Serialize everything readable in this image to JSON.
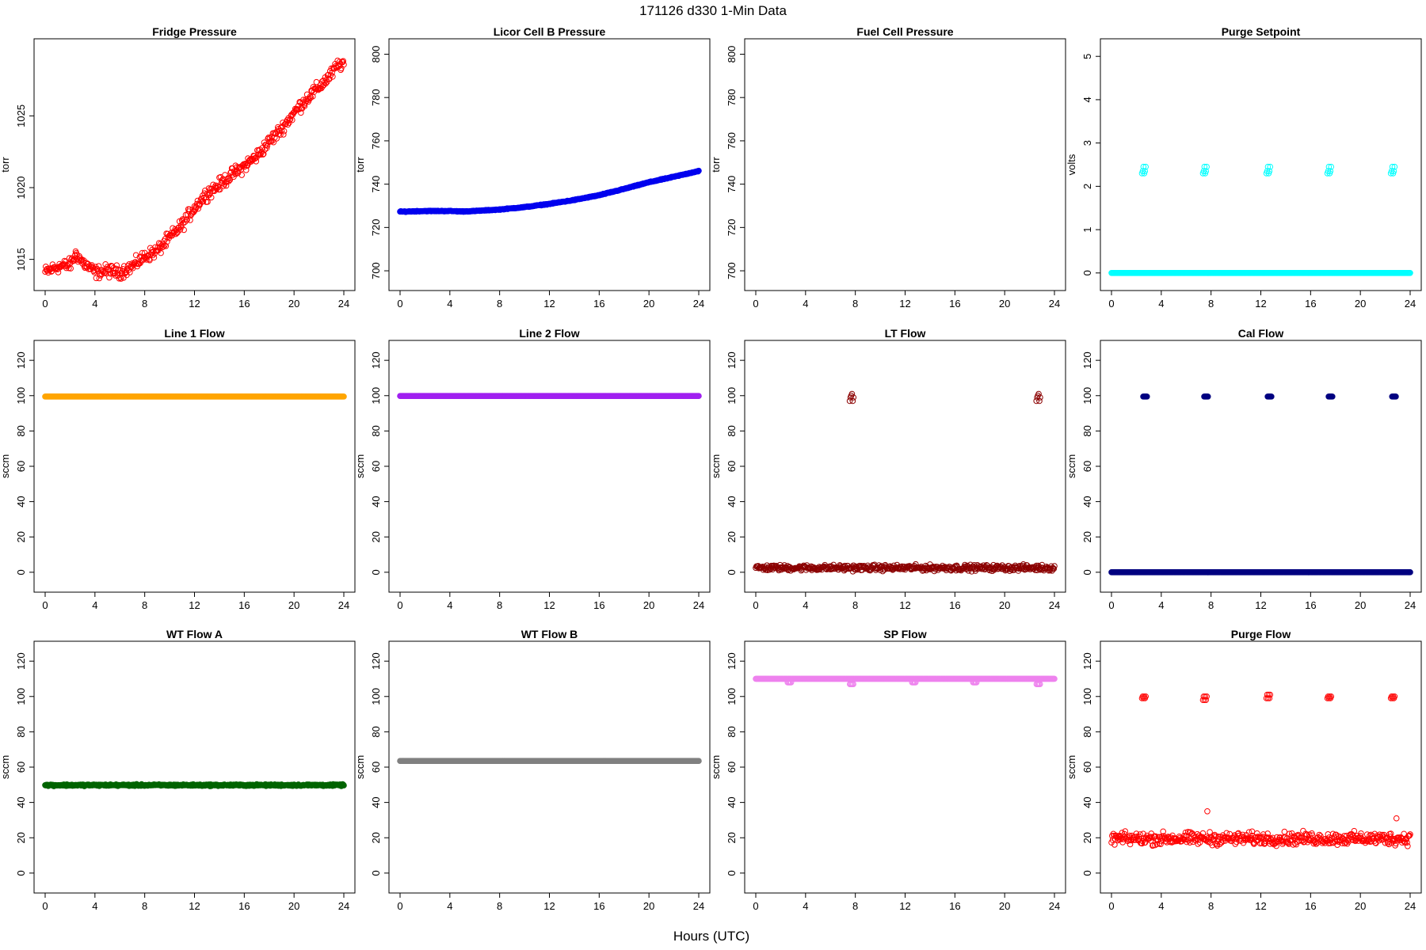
{
  "figure": {
    "suptitle": "171126   d330   1-Min Data",
    "xlabel": "Hours (UTC)"
  },
  "chart_data": [
    {
      "type": "scatter",
      "title": "Fridge Pressure",
      "ylabel": "torr",
      "xlim": [
        0,
        24
      ],
      "ylim": [
        1013.6,
        1029.6
      ],
      "xticks": [
        0,
        4,
        8,
        12,
        16,
        20,
        24
      ],
      "yticks": [
        1015,
        1020,
        1025
      ],
      "color": "#ff0000",
      "marker": "open-circle",
      "series": [
        {
          "x": [
            0,
            1,
            2,
            2.5,
            3,
            4,
            5,
            6,
            7,
            8,
            9,
            10,
            11,
            12,
            13,
            14,
            15,
            16,
            17,
            18,
            19,
            20,
            21,
            22,
            23,
            23.5,
            24
          ],
          "y": [
            1014.1,
            1014.5,
            1014.6,
            1015.4,
            1014.8,
            1014.1,
            1014.2,
            1014.1,
            1014.5,
            1015.2,
            1015.6,
            1016.5,
            1017.4,
            1018.6,
            1019.6,
            1020.2,
            1020.9,
            1021.5,
            1022.2,
            1023.2,
            1024.1,
            1025.2,
            1026.2,
            1027.0,
            1027.9,
            1028.5,
            1028.7
          ]
        }
      ]
    },
    {
      "type": "scatter",
      "title": "Licor Cell B Pressure",
      "ylabel": "torr",
      "xlim": [
        0,
        24
      ],
      "ylim": [
        696,
        802
      ],
      "xticks": [
        0,
        4,
        8,
        12,
        16,
        20,
        24
      ],
      "yticks": [
        700,
        720,
        740,
        760,
        780,
        800
      ],
      "color": "#0000ee",
      "marker": "filled",
      "series": [
        {
          "x": [
            0,
            2,
            4,
            5,
            6,
            8,
            10,
            12,
            14,
            16,
            18,
            20,
            22,
            24
          ],
          "y": [
            727.3,
            727.6,
            727.6,
            727.4,
            727.6,
            728.3,
            729.4,
            730.9,
            732.7,
            734.9,
            737.8,
            740.9,
            743.4,
            746.1
          ]
        }
      ]
    },
    {
      "type": "scatter",
      "title": "Fuel Cell Pressure",
      "ylabel": "torr",
      "xlim": [
        0,
        24
      ],
      "ylim": [
        696,
        802
      ],
      "xticks": [
        0,
        4,
        8,
        12,
        16,
        20,
        24
      ],
      "yticks": [
        700,
        720,
        740,
        760,
        780,
        800
      ],
      "color": "#000000",
      "marker": "none",
      "series": []
    },
    {
      "type": "scatter",
      "title": "Purge Setpoint",
      "ylabel": "volts",
      "xlim": [
        0,
        24
      ],
      "ylim": [
        -0.15,
        5.15
      ],
      "xticks": [
        0,
        4,
        8,
        12,
        16,
        20,
        24
      ],
      "yticks": [
        0,
        1,
        2,
        3,
        4,
        5
      ],
      "color": "#00ffff",
      "marker": "open-circle",
      "series": [
        {
          "baseline": 0,
          "x": [
            0,
            24
          ],
          "y": [
            0,
            0
          ],
          "spikes": [
            {
              "x": 2.6,
              "y": [
                2.3,
                2.35,
                2.45
              ]
            },
            {
              "x": 7.5,
              "y": [
                2.3,
                2.35,
                2.45
              ]
            },
            {
              "x": 12.6,
              "y": [
                2.3,
                2.35,
                2.45
              ]
            },
            {
              "x": 17.5,
              "y": [
                2.3,
                2.35,
                2.45
              ]
            },
            {
              "x": 22.6,
              "y": [
                2.3,
                2.35,
                2.45
              ]
            }
          ]
        }
      ]
    },
    {
      "type": "scatter",
      "title": "Line 1 Flow",
      "ylabel": "sccm",
      "xlim": [
        0,
        24
      ],
      "ylim": [
        -5,
        125
      ],
      "xticks": [
        0,
        4,
        8,
        12,
        16,
        20,
        24
      ],
      "yticks": [
        0,
        20,
        40,
        60,
        80,
        100,
        120
      ],
      "color": "#ffa500",
      "marker": "filled",
      "series": [
        {
          "x": [
            0,
            24
          ],
          "y": [
            99.5,
            99.5
          ]
        }
      ]
    },
    {
      "type": "scatter",
      "title": "Line 2 Flow",
      "ylabel": "sccm",
      "xlim": [
        0,
        24
      ],
      "ylim": [
        -5,
        125
      ],
      "xticks": [
        0,
        4,
        8,
        12,
        16,
        20,
        24
      ],
      "yticks": [
        0,
        20,
        40,
        60,
        80,
        100,
        120
      ],
      "color": "#a020f0",
      "marker": "filled",
      "series": [
        {
          "x": [
            0,
            24
          ],
          "y": [
            99.8,
            99.8
          ]
        }
      ]
    },
    {
      "type": "scatter",
      "title": "LT Flow",
      "ylabel": "sccm",
      "xlim": [
        0,
        24
      ],
      "ylim": [
        -5,
        125
      ],
      "xticks": [
        0,
        4,
        8,
        12,
        16,
        20,
        24
      ],
      "yticks": [
        0,
        20,
        40,
        60,
        80,
        100,
        120
      ],
      "color": "#8b0000",
      "marker": "open-circle",
      "series": [
        {
          "baseline": 2.5,
          "x": [
            0,
            24
          ],
          "y": [
            2.5,
            2.5
          ],
          "spikes": [
            {
              "x": 7.7,
              "y": [
                97,
                99,
                100,
                101
              ]
            },
            {
              "x": 22.7,
              "y": [
                97,
                99,
                100,
                101
              ]
            }
          ]
        }
      ]
    },
    {
      "type": "scatter",
      "title": "Cal Flow",
      "ylabel": "sccm",
      "xlim": [
        0,
        24
      ],
      "ylim": [
        -5,
        125
      ],
      "xticks": [
        0,
        4,
        8,
        12,
        16,
        20,
        24
      ],
      "yticks": [
        0,
        20,
        40,
        60,
        80,
        100,
        120
      ],
      "color": "#000080",
      "marker": "filled",
      "series": [
        {
          "baseline": 0,
          "x": [
            0,
            24
          ],
          "y": [
            0,
            0
          ],
          "spikes": [
            {
              "x": 2.7,
              "y": [
                99.5
              ]
            },
            {
              "x": 7.6,
              "y": [
                99.5
              ]
            },
            {
              "x": 12.7,
              "y": [
                99.5
              ]
            },
            {
              "x": 17.6,
              "y": [
                99.5
              ]
            },
            {
              "x": 22.7,
              "y": [
                99.5
              ]
            }
          ]
        }
      ]
    },
    {
      "type": "scatter",
      "title": "WT Flow A",
      "ylabel": "sccm",
      "xlim": [
        0,
        24
      ],
      "ylim": [
        -5,
        125
      ],
      "xticks": [
        0,
        4,
        8,
        12,
        16,
        20,
        24
      ],
      "yticks": [
        0,
        20,
        40,
        60,
        80,
        100,
        120
      ],
      "color": "#006400",
      "marker": "filled",
      "series": [
        {
          "x": [
            0,
            24
          ],
          "y": [
            49.8,
            49.8
          ]
        }
      ]
    },
    {
      "type": "scatter",
      "title": "WT Flow B",
      "ylabel": "sccm",
      "xlim": [
        0,
        24
      ],
      "ylim": [
        -5,
        125
      ],
      "xticks": [
        0,
        4,
        8,
        12,
        16,
        20,
        24
      ],
      "yticks": [
        0,
        20,
        40,
        60,
        80,
        100,
        120
      ],
      "color": "#808080",
      "marker": "filled",
      "series": [
        {
          "x": [
            0,
            24
          ],
          "y": [
            63.5,
            63.5
          ]
        }
      ]
    },
    {
      "type": "scatter",
      "title": "SP Flow",
      "ylabel": "sccm",
      "xlim": [
        0,
        24
      ],
      "ylim": [
        -5,
        125
      ],
      "xticks": [
        0,
        4,
        8,
        12,
        16,
        20,
        24
      ],
      "yticks": [
        0,
        20,
        40,
        60,
        80,
        100,
        120
      ],
      "color": "#ee82ee",
      "marker": "open-circle",
      "series": [
        {
          "baseline": 110,
          "x": [
            0,
            24
          ],
          "y": [
            110,
            110
          ],
          "dips": [
            {
              "x": 2.7,
              "y": 108
            },
            {
              "x": 7.7,
              "y": 107
            },
            {
              "x": 12.7,
              "y": 108
            },
            {
              "x": 17.6,
              "y": 108
            },
            {
              "x": 22.7,
              "y": 107
            }
          ]
        }
      ]
    },
    {
      "type": "scatter",
      "title": "Purge Flow",
      "ylabel": "sccm",
      "xlim": [
        0,
        24
      ],
      "ylim": [
        -5,
        125
      ],
      "xticks": [
        0,
        4,
        8,
        12,
        16,
        20,
        24
      ],
      "yticks": [
        0,
        20,
        40,
        60,
        80,
        100,
        120
      ],
      "color": "#ff0000",
      "marker": "open-circle",
      "series": [
        {
          "baseline": 19.5,
          "x": [
            0,
            24
          ],
          "y": [
            19.5,
            19.5
          ],
          "spikes": [
            {
              "x": 2.6,
              "y": [
                99,
                100
              ]
            },
            {
              "x": 7.5,
              "y": [
                98,
                100
              ]
            },
            {
              "x": 12.6,
              "y": [
                99,
                101
              ]
            },
            {
              "x": 17.5,
              "y": [
                99,
                100
              ]
            },
            {
              "x": 22.6,
              "y": [
                99,
                100
              ]
            }
          ],
          "outliers": [
            {
              "x": 7.7,
              "y": 35
            },
            {
              "x": 22.9,
              "y": 31
            }
          ]
        }
      ]
    }
  ]
}
